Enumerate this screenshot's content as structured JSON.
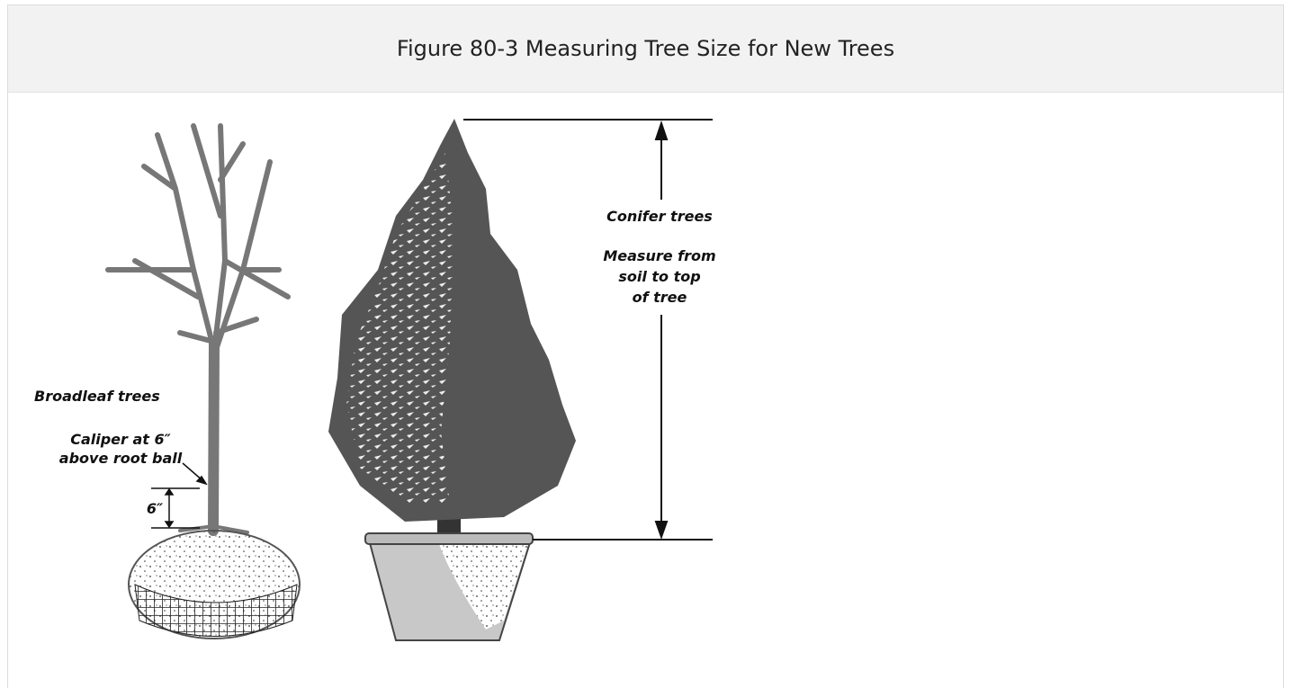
{
  "header": {
    "title": "Figure 80-3 Measuring Tree Size for New Trees"
  },
  "figure": {
    "broadleaf": {
      "title": "Broadleaf trees",
      "caliper_lines": [
        "Caliper at 6″",
        "above root ball"
      ],
      "height_mark": "6″"
    },
    "conifer": {
      "title": "Conifer trees",
      "measure_lines": [
        "Measure from",
        "soil to top",
        "of tree"
      ]
    }
  }
}
